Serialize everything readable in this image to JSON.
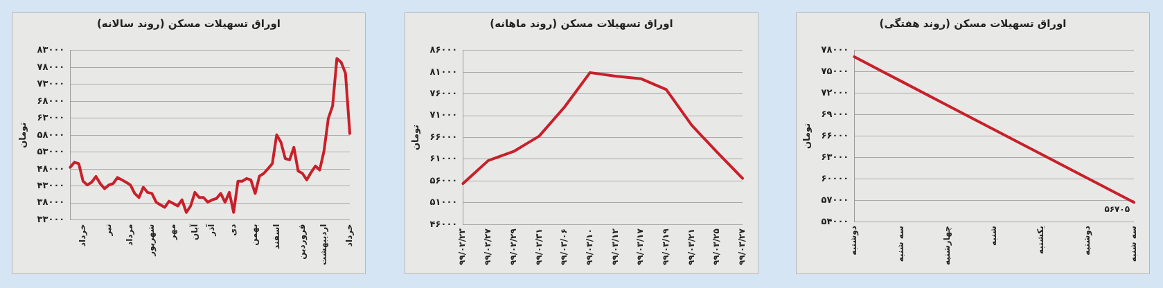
{
  "chart_data": [
    {
      "type": "line",
      "title": "اوراق تسهیلات مسکن (روند سالانه)",
      "ylabel": "تومان",
      "grid": "y",
      "marker": "none",
      "line_style": "solid",
      "categories": [
        null,
        null,
        null,
        "خرداد",
        null,
        null,
        null,
        null,
        null,
        "تیر",
        null,
        null,
        null,
        null,
        "مرداد",
        null,
        null,
        null,
        null,
        "شهریور",
        null,
        null,
        null,
        null,
        "مهر",
        null,
        null,
        null,
        null,
        "آبان",
        null,
        null,
        null,
        "آذر",
        null,
        null,
        null,
        null,
        "دی",
        null,
        null,
        null,
        null,
        "بهمن",
        null,
        null,
        null,
        null,
        "اسفند",
        null,
        null,
        null,
        null,
        null,
        "فروردین",
        null,
        null,
        null,
        null,
        "اردیبهشت",
        null,
        null,
        null,
        null,
        null,
        "خرداد"
      ],
      "series": [
        {
          "color": "#c8202a",
          "values": [
            48500,
            50000,
            49600,
            44400,
            43300,
            44100,
            45800,
            43700,
            42200,
            43300,
            43700,
            45500,
            44800,
            44100,
            43300,
            40800,
            39600,
            42600,
            41100,
            40800,
            38200,
            37400,
            36700,
            38500,
            37800,
            37100,
            38900,
            35200,
            37100,
            41100,
            39600,
            39600,
            38200,
            38900,
            39300,
            40800,
            38200,
            41100,
            35200,
            44400,
            44400,
            45200,
            44800,
            40800,
            45900,
            46700,
            48100,
            49600,
            58100,
            55900,
            51100,
            50700,
            54400,
            47400,
            46700,
            44800,
            47000,
            48900,
            47700,
            53300,
            62900,
            66600,
            80600,
            79500,
            76200,
            58500
          ]
        }
      ],
      "ylim": [
        33000,
        83000
      ],
      "yticks": [
        {
          "value": 33000,
          "label": "۳۳۰۰۰"
        },
        {
          "value": 38000,
          "label": "۳۸۰۰۰"
        },
        {
          "value": 43000,
          "label": "۴۳۰۰۰"
        },
        {
          "value": 48000,
          "label": "۴۸۰۰۰"
        },
        {
          "value": 53000,
          "label": "۵۳۰۰۰"
        },
        {
          "value": 58000,
          "label": "۵۸۰۰۰"
        },
        {
          "value": 63000,
          "label": "۶۳۰۰۰"
        },
        {
          "value": 68000,
          "label": "۶۸۰۰۰"
        },
        {
          "value": 73000,
          "label": "۷۳۰۰۰"
        },
        {
          "value": 78000,
          "label": "۷۸۰۰۰"
        },
        {
          "value": 83000,
          "label": "۸۳۰۰۰"
        }
      ]
    },
    {
      "type": "line",
      "title": "اوراق تسهیلات مسکن (روند ماهانه)",
      "ylabel": "تومان",
      "grid": "y",
      "marker": "none",
      "line_style": "solid",
      "categories": [
        "۹۹/۰۲/۲۳",
        "۹۹/۰۲/۲۷",
        "۹۹/۰۲/۲۹",
        "۹۹/۰۲/۳۱",
        "۹۹/۰۳/۰۶",
        "۹۹/۰۳/۱۰",
        "۹۹/۰۳/۱۲",
        "۹۹/۰۳/۱۷",
        "۹۹/۰۳/۱۹",
        "۹۹/۰۳/۲۱",
        "۹۹/۰۳/۲۵",
        "۹۹/۰۳/۲۷"
      ],
      "series": [
        {
          "color": "#c8202a",
          "values": [
            55400,
            60700,
            62800,
            66300,
            73000,
            80900,
            80100,
            79500,
            77000,
            68800,
            62600,
            56600
          ]
        }
      ],
      "ylim": [
        46000,
        86000
      ],
      "yticks": [
        {
          "value": 46000,
          "label": "۴۶۰۰۰"
        },
        {
          "value": 51000,
          "label": "۵۱۰۰۰"
        },
        {
          "value": 56000,
          "label": "۵۶۰۰۰"
        },
        {
          "value": 61000,
          "label": "۶۱۰۰۰"
        },
        {
          "value": 66000,
          "label": "۶۶۰۰۰"
        },
        {
          "value": 71000,
          "label": "۷۱۰۰۰"
        },
        {
          "value": 76000,
          "label": "۷۶۰۰۰"
        },
        {
          "value": 81000,
          "label": "۸۱۰۰۰"
        },
        {
          "value": 86000,
          "label": "۸۶۰۰۰"
        }
      ]
    },
    {
      "type": "line",
      "title": "اوراق تسهیلات مسکن (روند هفتگی)",
      "ylabel": "تومان",
      "grid": "y",
      "marker": "none",
      "line_style": "solid",
      "categories": [
        "دوشنبه",
        "سه شنبه",
        "چهارشنبه",
        "شنبه",
        "یکشنبه",
        "دوشنبه",
        "سه شنبه"
      ],
      "series": [
        {
          "color": "#c8202a",
          "values": [
            77100,
            73700,
            70300,
            66900,
            63500,
            60100,
            56705
          ],
          "value_labels": [
            null,
            null,
            null,
            null,
            null,
            null,
            "۵۶۷۰۵"
          ]
        }
      ],
      "ylim": [
        54000,
        78000
      ],
      "yticks": [
        {
          "value": 54000,
          "label": "۵۴۰۰۰"
        },
        {
          "value": 57000,
          "label": "۵۷۰۰۰"
        },
        {
          "value": 60000,
          "label": "۶۰۰۰۰"
        },
        {
          "value": 63000,
          "label": "۶۳۰۰۰"
        },
        {
          "value": 66000,
          "label": "۶۶۰۰۰"
        },
        {
          "value": 69000,
          "label": "۶۹۰۰۰"
        },
        {
          "value": 72000,
          "label": "۷۲۰۰۰"
        },
        {
          "value": 75000,
          "label": "۷۵۰۰۰"
        },
        {
          "value": 78000,
          "label": "۷۸۰۰۰"
        }
      ]
    }
  ]
}
